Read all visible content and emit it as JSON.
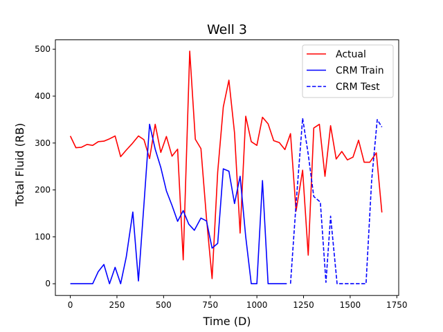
{
  "chart_data": {
    "type": "line",
    "title": "Well 3",
    "xlabel": "Time (D)",
    "ylabel": "Total Fluid (RB)",
    "xlim": [
      -80,
      1760
    ],
    "ylim": [
      -25,
      520
    ],
    "xticks": [
      0,
      250,
      500,
      750,
      1000,
      1250,
      1500,
      1750
    ],
    "yticks": [
      0,
      100,
      200,
      300,
      400,
      500
    ],
    "grid": false,
    "legend_position": "top-right",
    "series": [
      {
        "name": "Actual",
        "color": "#ff0000",
        "style": "solid",
        "x": [
          0,
          30,
          60,
          90,
          120,
          150,
          180,
          210,
          240,
          270,
          300,
          330,
          365,
          395,
          425,
          455,
          485,
          515,
          545,
          575,
          605,
          640,
          670,
          700,
          730,
          760,
          790,
          820,
          850,
          880,
          910,
          940,
          970,
          1000,
          1030,
          1060,
          1090,
          1120,
          1150,
          1180,
          1210,
          1245,
          1275,
          1305,
          1335,
          1365,
          1395,
          1425,
          1455,
          1485,
          1515,
          1545,
          1575,
          1605,
          1640,
          1670
        ],
        "y": [
          315,
          290,
          291,
          297,
          295,
          303,
          304,
          309,
          315,
          271,
          285,
          298,
          315,
          307,
          267,
          340,
          280,
          314,
          272,
          287,
          51,
          496,
          308,
          288,
          140,
          11,
          238,
          377,
          434,
          322,
          108,
          357,
          303,
          295,
          355,
          341,
          305,
          301,
          286,
          320,
          155,
          242,
          61,
          332,
          340,
          229,
          337,
          266,
          282,
          264,
          270,
          306,
          259,
          259,
          279,
          152
        ]
      },
      {
        "name": "CRM Train",
        "color": "#0000ff",
        "style": "solid",
        "x": [
          0,
          30,
          60,
          90,
          120,
          150,
          180,
          210,
          240,
          270,
          300,
          335,
          365,
          395,
          425,
          455,
          485,
          515,
          545,
          575,
          605,
          635,
          665,
          700,
          730,
          760,
          790,
          820,
          850,
          880,
          910,
          940,
          970,
          1000,
          1030,
          1060,
          1090,
          1120,
          1160
        ],
        "y": [
          0,
          0,
          0,
          0,
          0,
          26,
          41,
          0,
          35,
          0,
          57,
          153,
          6,
          170,
          340,
          287,
          248,
          198,
          167,
          133,
          156,
          127,
          114,
          140,
          134,
          76,
          86,
          245,
          240,
          171,
          229,
          100,
          0,
          0,
          220,
          0,
          0,
          0,
          0
        ]
      },
      {
        "name": "CRM Test",
        "color": "#0000ff",
        "style": "dashed",
        "x": [
          1180,
          1210,
          1245,
          1275,
          1305,
          1340,
          1370,
          1395,
          1430,
          1460,
          1490,
          1520,
          1555,
          1585,
          1615,
          1645,
          1670
        ],
        "y": [
          0,
          170,
          353,
          276,
          186,
          174,
          3,
          144,
          0,
          0,
          0,
          0,
          0,
          0,
          220,
          350,
          334
        ]
      }
    ]
  }
}
